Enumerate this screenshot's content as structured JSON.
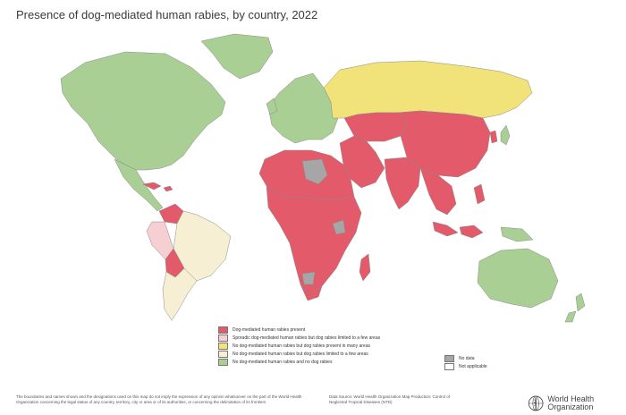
{
  "title": "Presence of dog-mediated human rabies, by country, 2022",
  "legend": [
    {
      "label": "Dog-mediated human rabies present",
      "color": "#e35a6a"
    },
    {
      "label": "Sporadic dog-mediated human rabies but dog rabies limited to a few areas",
      "color": "#f6cfd2"
    },
    {
      "label": "No dog-mediated human rabies but dog rabies present in many areas",
      "color": "#f2e27a"
    },
    {
      "label": "No dog-mediated human rabies but dog rabies limited to a few areas",
      "color": "#f7efd3"
    },
    {
      "label": "No dog-mediated human rabies and no dog rabies",
      "color": "#a9cf94"
    }
  ],
  "legend_extra": [
    {
      "label": "No data",
      "color": "#a6a6a6"
    },
    {
      "label": "Not applicable",
      "color": "#ffffff"
    }
  ],
  "footer": {
    "disclaimer": "The boundaries and names shown and the designations used on this map do not imply the expression of any opinion whatsoever on the part of the World Health Organization concerning the legal status of any country, territory, city or area or of its authorities, or concerning the delimitation of its frontiers",
    "source": "Data Source: World Health Organization Map Production: Control of Neglected Tropical Diseases (NTD)",
    "org": "World Health Organization"
  },
  "colors": {
    "ocean": "#ffffff",
    "border": "#8a8a8a"
  }
}
